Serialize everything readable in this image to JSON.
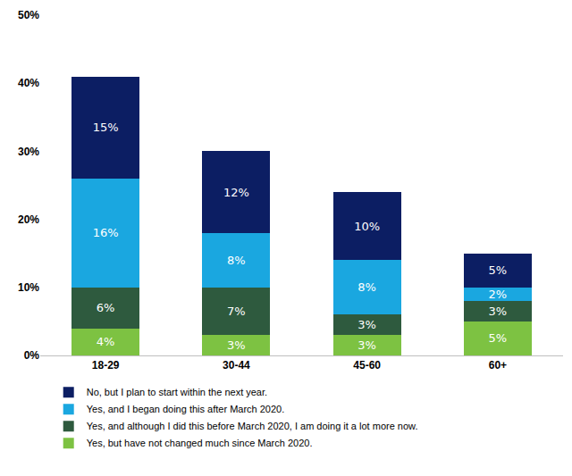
{
  "chart_data": {
    "type": "bar",
    "stacked": true,
    "data_labels": true,
    "grid": false,
    "legend": "bottom",
    "categories": [
      "18-29",
      "30-44",
      "45-60",
      "60+"
    ],
    "ylim": [
      0,
      50
    ],
    "yticks": [
      {
        "value": 0,
        "label": "0%"
      },
      {
        "value": 10,
        "label": "10%"
      },
      {
        "value": 20,
        "label": "20%"
      },
      {
        "value": 30,
        "label": "30%"
      },
      {
        "value": 40,
        "label": "40%"
      },
      {
        "value": 50,
        "label": "50%"
      }
    ],
    "series": [
      {
        "name": "No, but I plan to start within the next year.",
        "color": "#0c1e63",
        "values": [
          15,
          12,
          10,
          5
        ],
        "value_labels": [
          "15%",
          "12%",
          "10%",
          "5%"
        ]
      },
      {
        "name": "Yes, and I began doing this after March 2020.",
        "color": "#1aa7e0",
        "values": [
          16,
          8,
          8,
          2
        ],
        "value_labels": [
          "16%",
          "8%",
          "8%",
          "2%"
        ]
      },
      {
        "name": "Yes, and although I did this before March 2020, I am doing it a lot more now.",
        "color": "#2e5a3e",
        "values": [
          6,
          7,
          3,
          3
        ],
        "value_labels": [
          "6%",
          "7%",
          "3%",
          "3%"
        ]
      },
      {
        "name": "Yes, but have not changed much since March 2020.",
        "color": "#7dc242",
        "values": [
          4,
          3,
          3,
          5
        ],
        "value_labels": [
          "4%",
          "3%",
          "3%",
          "5%"
        ]
      }
    ]
  }
}
